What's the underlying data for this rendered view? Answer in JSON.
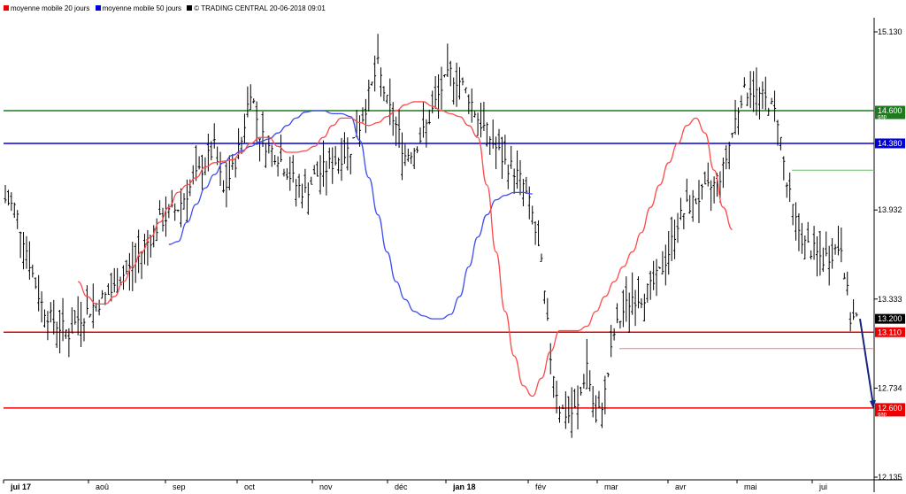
{
  "legend": {
    "ma20": "moyenne mobile 20 jours",
    "ma50": "moyenne mobile 50 jours",
    "source": "© TRADING CENTRAL 20-06-2018 09:01"
  },
  "colors": {
    "ma20": "#ff4a4a",
    "ma50": "#3f4df0",
    "resistance_green": "#1f7a1f",
    "resistance_blue": "#0000dd",
    "support_red": "#ee0000",
    "arrow": "#1a237e",
    "bars": "#000000"
  },
  "chart_data": {
    "type": "ohlc",
    "x_months": [
      "jui 17",
      "aoû",
      "sep",
      "oct",
      "nov",
      "déc",
      "jan 18",
      "fév",
      "mar",
      "avr",
      "mai",
      "jui"
    ],
    "y_ticks": [
      "15.130",
      "13.932",
      "13.333",
      "12.734",
      "12.135"
    ],
    "ylim": [
      12.1,
      15.3
    ],
    "last_price": "13.200",
    "levels": [
      {
        "value": 14.6,
        "label": "14.600",
        "sub": "gap",
        "color": "#1f7a1f"
      },
      {
        "value": 14.38,
        "label": "14.380",
        "sub": "",
        "color": "#0000dd"
      },
      {
        "value": 13.11,
        "label": "13.110",
        "sub": "",
        "color": "#ee0000"
      },
      {
        "value": 12.6,
        "label": "12.600",
        "sub": "gap",
        "color": "#ee0000"
      }
    ],
    "closes": [
      14.0,
      13.95,
      13.75,
      13.5,
      13.3,
      13.2,
      13.15,
      13.1,
      13.2,
      13.25,
      13.3,
      13.35,
      13.4,
      13.5,
      13.55,
      13.65,
      13.75,
      13.85,
      13.9,
      13.95,
      14.05,
      14.15,
      14.25,
      14.35,
      14.05,
      14.2,
      14.4,
      14.75,
      14.45,
      14.35,
      14.3,
      14.2,
      14.1,
      14.05,
      14.15,
      14.2,
      14.25,
      14.3,
      14.35,
      14.5,
      14.7,
      14.9,
      14.65,
      14.5,
      14.3,
      14.35,
      14.45,
      14.6,
      14.75,
      14.85,
      14.8,
      14.7,
      14.55,
      14.45,
      14.35,
      14.25,
      14.2,
      14.1,
      13.9,
      13.55,
      12.95,
      12.6,
      12.55,
      12.6,
      12.9,
      12.5,
      12.7,
      13.1,
      13.25,
      13.35,
      13.35,
      13.4,
      13.5,
      13.65,
      13.85,
      13.95,
      14.0,
      14.05,
      14.1,
      14.2,
      14.45,
      14.7,
      14.75,
      14.7,
      14.65,
      14.55,
      14.1,
      13.85,
      13.7,
      13.65,
      13.6,
      13.65,
      13.7,
      13.2
    ],
    "ma20": [
      null,
      null,
      null,
      null,
      null,
      null,
      null,
      null,
      13.45,
      13.35,
      13.3,
      13.3,
      13.35,
      13.45,
      13.55,
      13.65,
      13.75,
      13.85,
      13.95,
      14.05,
      14.1,
      14.15,
      14.22,
      14.25,
      14.26,
      14.27,
      14.32,
      14.38,
      14.42,
      14.42,
      14.36,
      14.32,
      14.32,
      14.33,
      14.36,
      14.42,
      14.5,
      14.55,
      14.55,
      14.52,
      14.5,
      14.52,
      14.56,
      14.6,
      14.64,
      14.66,
      14.66,
      14.63,
      14.6,
      14.58,
      14.56,
      14.5,
      14.42,
      14.1,
      13.65,
      13.25,
      12.95,
      12.75,
      12.68,
      12.8,
      12.98,
      13.12,
      13.12,
      13.12,
      13.15,
      13.25,
      13.35,
      13.45,
      13.55,
      13.65,
      13.78,
      13.95,
      14.1,
      14.25,
      14.38,
      14.5,
      14.55,
      14.45,
      14.2,
      13.95,
      13.8
    ],
    "ma50": [
      null,
      null,
      null,
      null,
      null,
      null,
      null,
      null,
      null,
      null,
      null,
      null,
      null,
      null,
      null,
      null,
      null,
      null,
      13.7,
      13.72,
      13.85,
      13.97,
      14.08,
      14.17,
      14.25,
      14.3,
      14.33,
      14.36,
      14.39,
      14.41,
      14.45,
      14.5,
      14.55,
      14.59,
      14.6,
      14.6,
      14.58,
      14.58,
      14.56,
      14.4,
      14.15,
      13.9,
      13.65,
      13.45,
      13.33,
      13.25,
      13.22,
      13.2,
      13.2,
      13.23,
      13.35,
      13.55,
      13.75,
      13.9,
      14.0,
      14.03,
      14.05,
      14.05,
      14.04
    ]
  }
}
